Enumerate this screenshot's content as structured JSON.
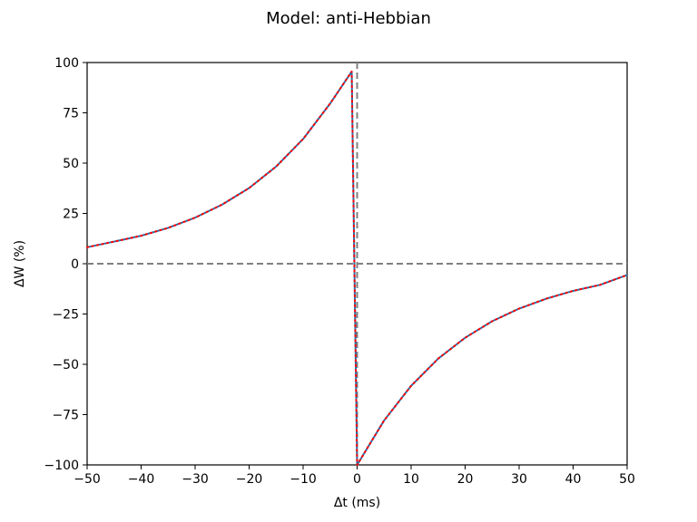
{
  "chart_data": {
    "type": "line",
    "title": "Model: anti-Hebbian",
    "xlabel": "Δt (ms)",
    "ylabel": "ΔW (%)",
    "xlim": [
      -50,
      50
    ],
    "ylim": [
      -100,
      100
    ],
    "xticks": [
      -50,
      -40,
      -30,
      -20,
      -10,
      0,
      10,
      20,
      30,
      40,
      50
    ],
    "yticks": [
      -100,
      -75,
      -50,
      -25,
      0,
      25,
      50,
      75,
      100
    ],
    "xtick_labels": [
      "−50",
      "−40",
      "−30",
      "−20",
      "−10",
      "0",
      "10",
      "20",
      "30",
      "40",
      "50"
    ],
    "ytick_labels": [
      "−100",
      "−75",
      "−50",
      "−25",
      "0",
      "25",
      "50",
      "75",
      "100"
    ],
    "grid": false,
    "legend": "none",
    "reference_lines": [
      {
        "orientation": "horizontal",
        "value": 0,
        "style": "dashed",
        "color": "#808080"
      },
      {
        "orientation": "vertical",
        "value": 0,
        "style": "dashed",
        "color": "#808080"
      }
    ],
    "series": [
      {
        "style": "solid",
        "color": "#1f77b4",
        "x": [
          -50,
          -45,
          -40,
          -35,
          -30,
          -25,
          -20,
          -15,
          -10,
          -5,
          -1,
          0,
          5,
          10,
          15,
          20,
          25,
          30,
          35,
          40,
          45,
          50
        ],
        "y": [
          8.2,
          11.0,
          13.9,
          17.8,
          22.9,
          29.4,
          37.6,
          48.3,
          62.0,
          79.6,
          95.5,
          -100,
          -77.9,
          -60.7,
          -47.2,
          -36.8,
          -28.6,
          -22.3,
          -17.4,
          -13.5,
          -10.5,
          -5.6
        ]
      },
      {
        "style": "dotted",
        "color": "#ff0000",
        "x": [
          -50,
          -45,
          -40,
          -35,
          -30,
          -25,
          -20,
          -15,
          -10,
          -5,
          -1,
          0,
          5,
          10,
          15,
          20,
          25,
          30,
          35,
          40,
          45,
          50
        ],
        "y": [
          8.2,
          11.0,
          13.9,
          17.8,
          22.9,
          29.4,
          37.6,
          48.3,
          62.0,
          79.6,
          95.5,
          -100,
          -77.9,
          -60.7,
          -47.2,
          -36.8,
          -28.6,
          -22.3,
          -17.4,
          -13.5,
          -10.5,
          -5.6
        ]
      }
    ]
  }
}
